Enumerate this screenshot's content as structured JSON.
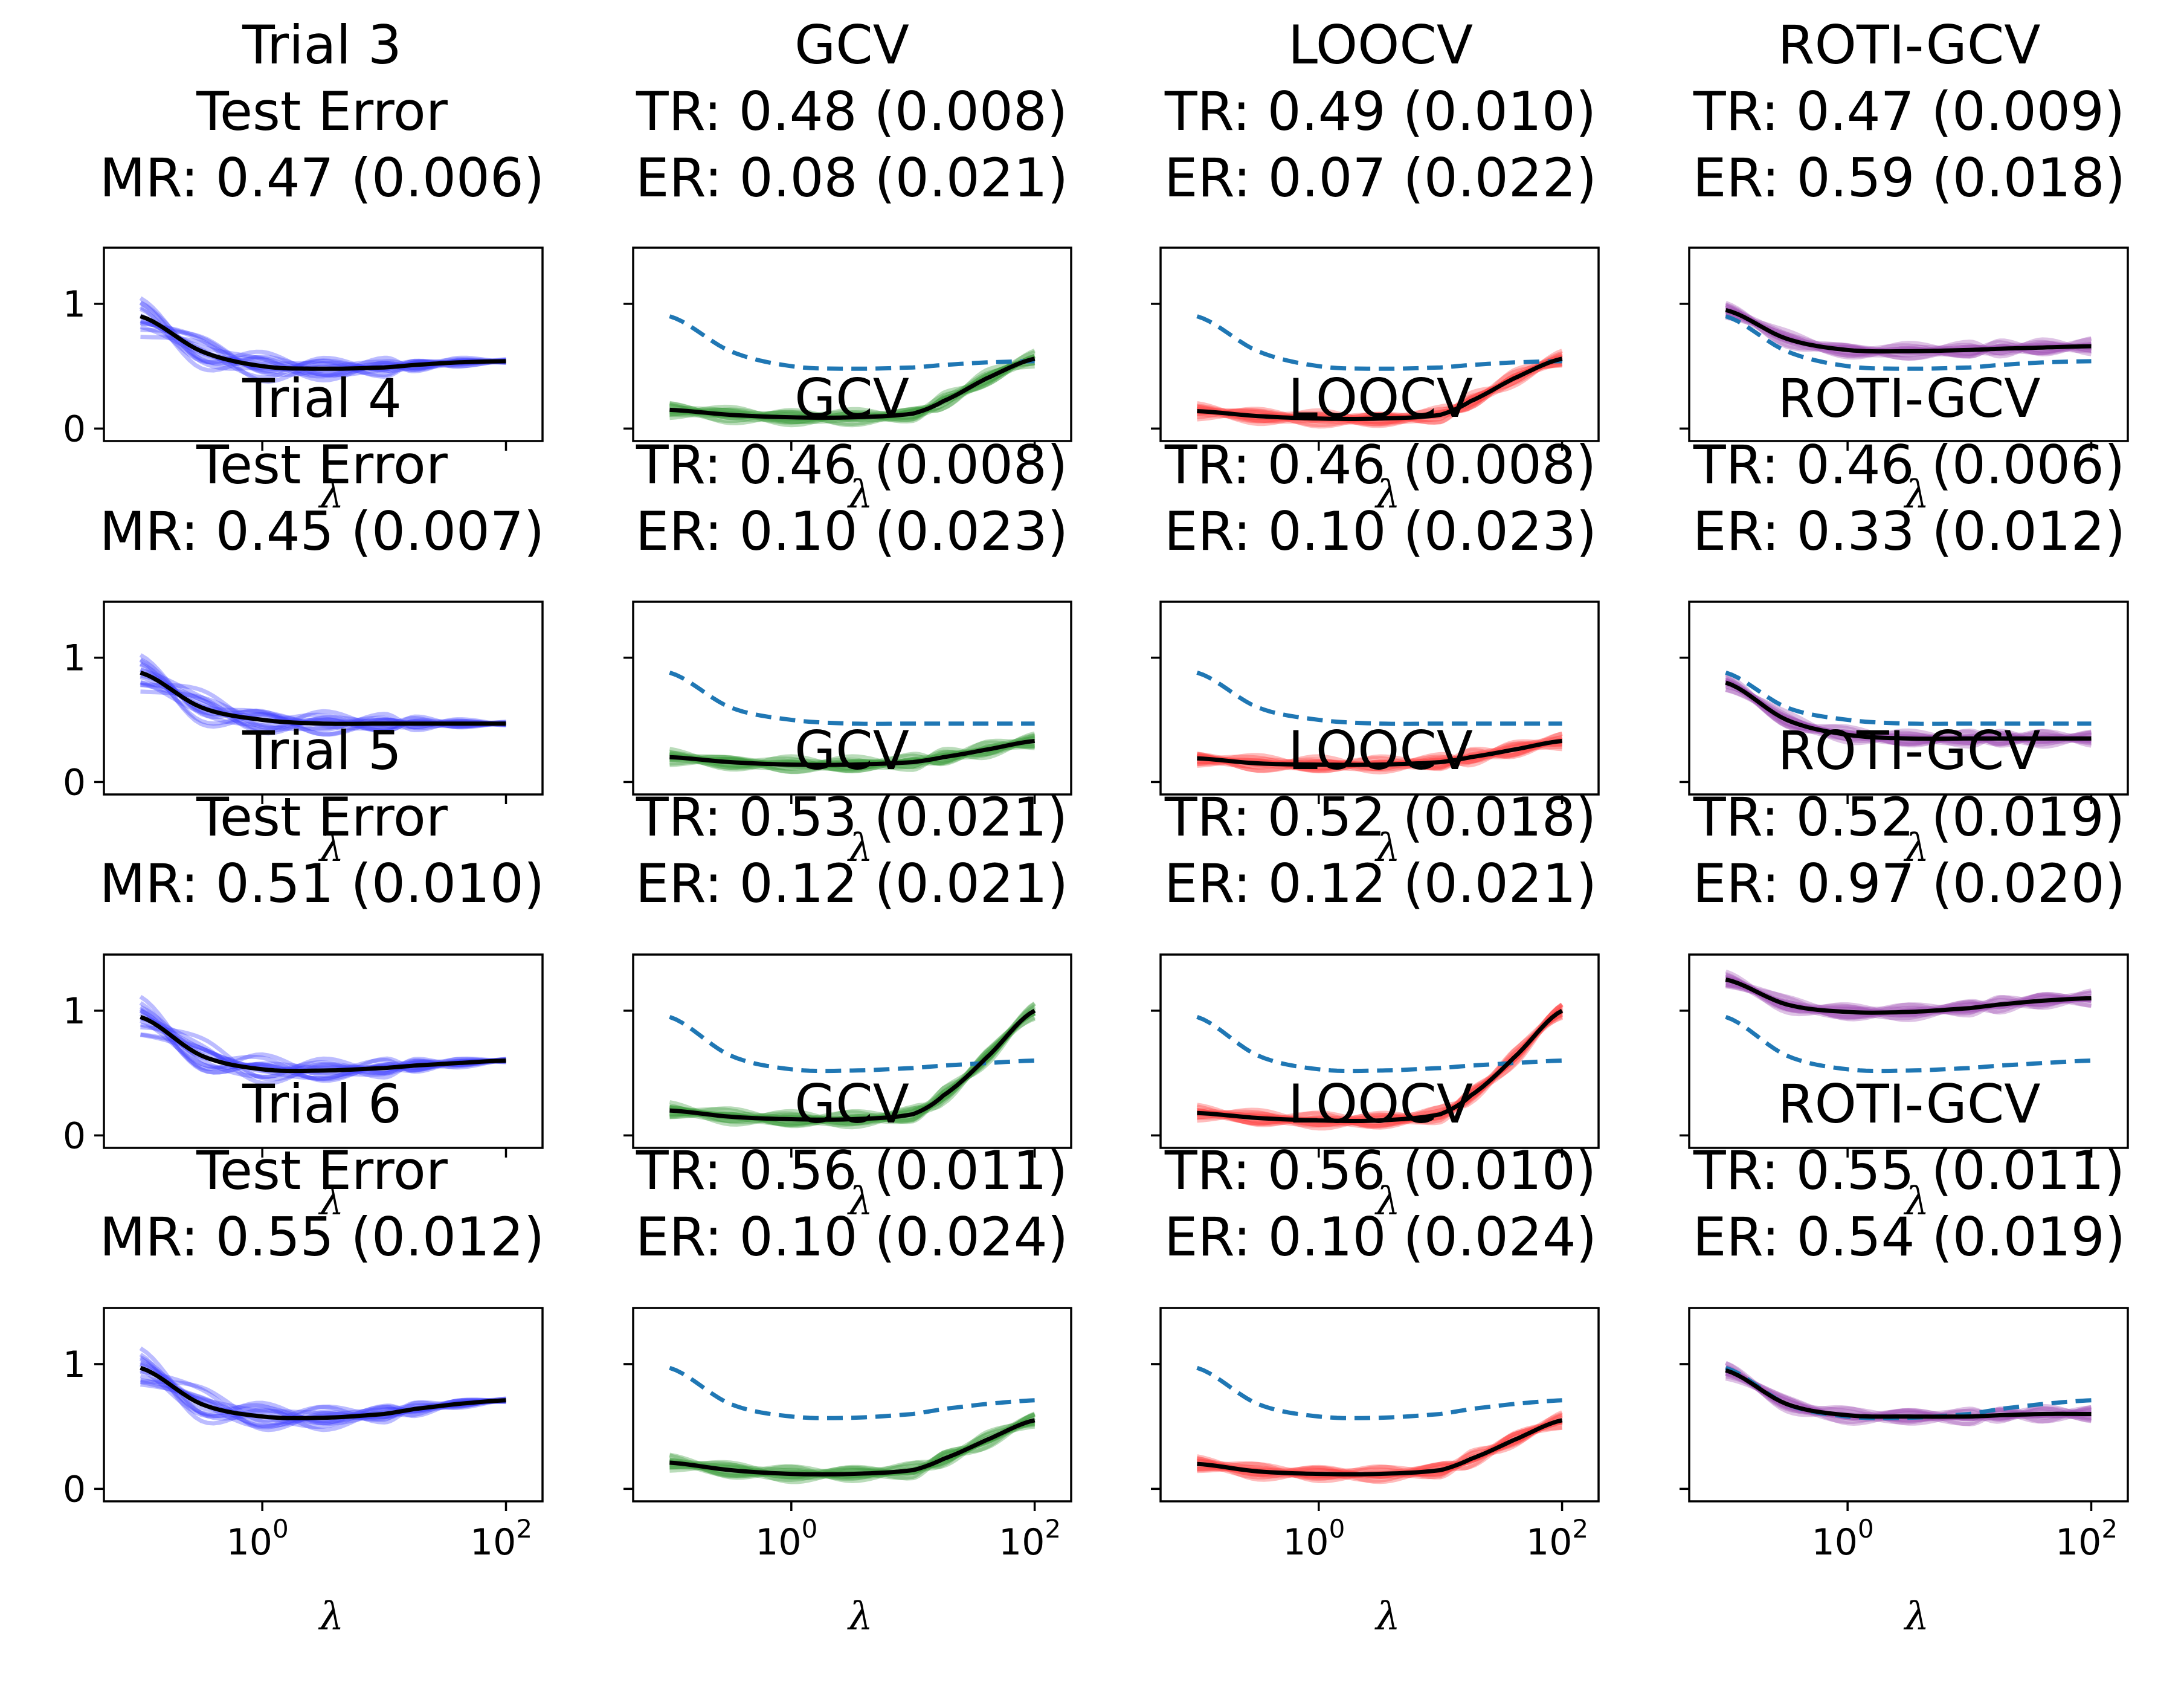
{
  "chart_data": {
    "type": "line",
    "rows": [
      {
        "trial": "Trial 3",
        "test_error_label": "Test Error",
        "mr": "MR: 0.47 (0.006)",
        "gcv": {
          "name": "GCV",
          "tr": "TR: 0.48 (0.008)",
          "er": "ER: 0.08 (0.021)"
        },
        "loocv": {
          "name": "LOOCV",
          "tr": "TR: 0.49 (0.010)",
          "er": "ER: 0.07 (0.022)"
        },
        "roti": {
          "name": "ROTI-GCV",
          "tr": "TR: 0.47 (0.009)",
          "er": "ER: 0.59 (0.018)"
        },
        "test_curve": [
          0.9,
          0.62,
          0.5,
          0.48,
          0.49,
          0.51,
          0.53,
          0.54
        ],
        "gcv_curve": [
          0.15,
          0.11,
          0.09,
          0.09,
          0.12,
          0.22,
          0.4,
          0.56
        ],
        "loocv_curve": [
          0.14,
          0.1,
          0.08,
          0.08,
          0.11,
          0.22,
          0.4,
          0.56
        ],
        "roti_curve": [
          0.95,
          0.72,
          0.63,
          0.62,
          0.63,
          0.64,
          0.65,
          0.66
        ]
      },
      {
        "trial": "Trial 4",
        "test_error_label": "Test Error",
        "mr": "MR: 0.45 (0.007)",
        "gcv": {
          "name": "GCV",
          "tr": "TR: 0.46 (0.008)",
          "er": "ER: 0.10 (0.023)"
        },
        "loocv": {
          "name": "LOOCV",
          "tr": "TR: 0.46 (0.008)",
          "er": "ER: 0.10 (0.023)"
        },
        "roti": {
          "name": "ROTI-GCV",
          "tr": "TR: 0.46 (0.006)",
          "er": "ER: 0.33 (0.012)"
        },
        "test_curve": [
          0.88,
          0.6,
          0.5,
          0.47,
          0.47,
          0.47,
          0.47,
          0.47
        ],
        "gcv_curve": [
          0.2,
          0.16,
          0.14,
          0.14,
          0.16,
          0.2,
          0.26,
          0.33
        ],
        "loocv_curve": [
          0.19,
          0.15,
          0.14,
          0.14,
          0.16,
          0.2,
          0.26,
          0.33
        ],
        "roti_curve": [
          0.8,
          0.5,
          0.38,
          0.35,
          0.35,
          0.35,
          0.35,
          0.35
        ]
      },
      {
        "trial": "Trial 5",
        "test_error_label": "Test Error",
        "mr": "MR: 0.51 (0.010)",
        "gcv": {
          "name": "GCV",
          "tr": "TR: 0.53 (0.021)",
          "er": "ER: 0.12 (0.021)"
        },
        "loocv": {
          "name": "LOOCV",
          "tr": "TR: 0.52 (0.018)",
          "er": "ER: 0.12 (0.021)"
        },
        "roti": {
          "name": "ROTI-GCV",
          "tr": "TR: 0.52 (0.019)",
          "er": "ER: 0.97 (0.020)"
        },
        "test_curve": [
          0.95,
          0.64,
          0.53,
          0.52,
          0.54,
          0.56,
          0.58,
          0.6
        ],
        "gcv_curve": [
          0.2,
          0.15,
          0.13,
          0.13,
          0.17,
          0.32,
          0.62,
          1.0
        ],
        "loocv_curve": [
          0.18,
          0.14,
          0.12,
          0.12,
          0.17,
          0.32,
          0.62,
          1.0
        ],
        "roti_curve": [
          1.25,
          1.05,
          0.99,
          0.99,
          1.02,
          1.05,
          1.08,
          1.1
        ]
      },
      {
        "trial": "Trial 6",
        "test_error_label": "Test Error",
        "mr": "MR: 0.55 (0.012)",
        "gcv": {
          "name": "GCV",
          "tr": "TR: 0.56 (0.011)",
          "er": "ER: 0.10 (0.024)"
        },
        "loocv": {
          "name": "LOOCV",
          "tr": "TR: 0.56 (0.010)",
          "er": "ER: 0.10 (0.024)"
        },
        "roti": {
          "name": "ROTI-GCV",
          "tr": "TR: 0.55 (0.011)",
          "er": "ER: 0.54 (0.019)"
        },
        "test_curve": [
          0.97,
          0.68,
          0.58,
          0.57,
          0.6,
          0.64,
          0.68,
          0.71
        ],
        "gcv_curve": [
          0.21,
          0.15,
          0.12,
          0.12,
          0.15,
          0.24,
          0.39,
          0.55
        ],
        "loocv_curve": [
          0.2,
          0.14,
          0.12,
          0.12,
          0.15,
          0.24,
          0.39,
          0.55
        ],
        "roti_curve": [
          0.95,
          0.68,
          0.59,
          0.58,
          0.58,
          0.59,
          0.6,
          0.6
        ]
      }
    ],
    "x_log10": [
      -1,
      -0.5,
      0,
      0.5,
      1,
      1.25,
      1.6,
      2
    ],
    "x_tick_log10": [
      0,
      2
    ],
    "x_tick_labels": [
      {
        "base": "10",
        "exp": "0"
      },
      {
        "base": "10",
        "exp": "2"
      }
    ],
    "xlabel": "λ",
    "yticks": [
      "0",
      "1"
    ],
    "ylim": [
      -0.1,
      1.45
    ],
    "xlim_log10": [
      -1.3,
      2.3
    ],
    "colors": {
      "test": "#4040ff",
      "gcv": "#3a9a3a",
      "loocv": "#ff4040",
      "roti": "#a050b4",
      "mean": "#000000",
      "dashed": "#1f77b4"
    }
  }
}
